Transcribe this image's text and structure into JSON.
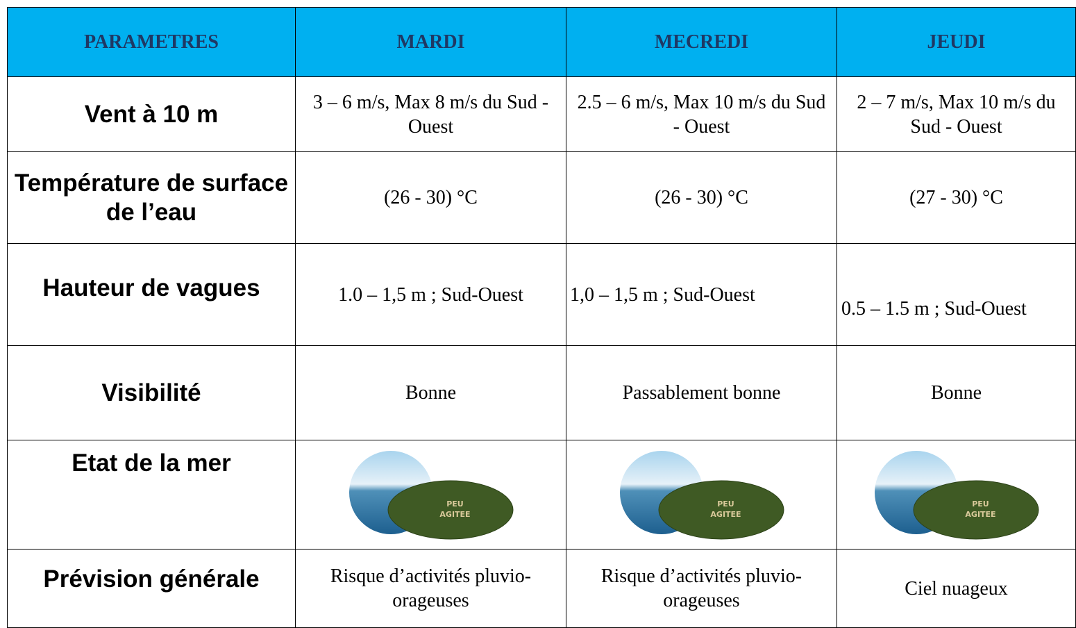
{
  "table": {
    "header": [
      "PARAMETRES",
      "MARDI",
      "MECREDI",
      "JEUDI"
    ],
    "rows": [
      [
        "Vent à 10 m",
        "3 – 6 m/s, Max 8 m/s du Sud - Ouest",
        "2.5 – 6 m/s, Max 10 m/s du Sud - Ouest",
        "2 – 7 m/s, Max 10 m/s du Sud - Ouest"
      ],
      [
        "Température de surface de l’eau",
        "(26 - 30) °C",
        "(26 - 30) °C",
        "(27 - 30) °C"
      ],
      [
        "Hauteur de vagues",
        "1.0 – 1,5 m ; Sud-Ouest",
        "1,0 – 1,5 m ; Sud-Ouest",
        "0.5 – 1.5 m ; Sud-Ouest"
      ],
      [
        "Visibilité",
        "Bonne",
        "Passablement bonne",
        "Bonne"
      ],
      [
        "Etat de la mer",
        "PEU AGITEE",
        "PEU AGITEE",
        "PEU AGITEE"
      ],
      [
        "Prévision générale",
        "Risque d’activités pluvio-orageuses",
        "Risque d’activités pluvio-orageuses",
        "Ciel nuageux"
      ]
    ]
  }
}
